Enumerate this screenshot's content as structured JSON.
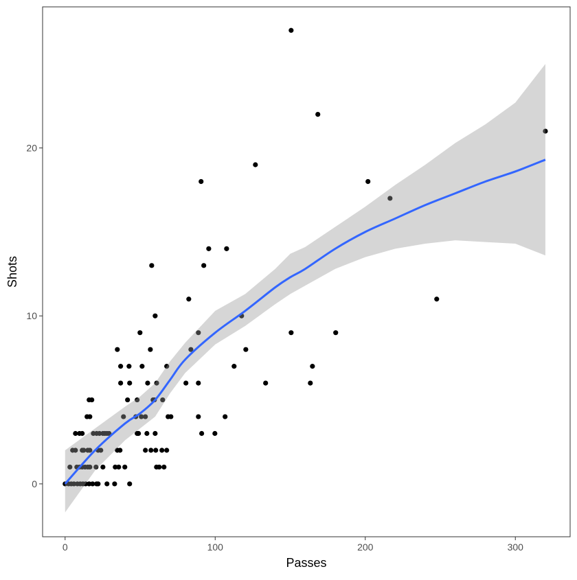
{
  "chart_data": {
    "type": "scatter",
    "title": "",
    "xlabel": "Passes",
    "ylabel": "Shots",
    "xlim": [
      -15,
      336.5
    ],
    "ylim": [
      -3.15,
      28.4
    ],
    "x_ticks": [
      0,
      100,
      200,
      300
    ],
    "y_ticks": [
      0,
      10,
      20
    ],
    "x_tick_labels": [
      "0",
      "100",
      "200",
      "300"
    ],
    "y_tick_labels": [
      "0",
      "10",
      "20"
    ],
    "grid": false,
    "colors": {
      "points": "#000000",
      "smooth_line": "#3366FF",
      "ribbon": "#999999",
      "axis": "#333333",
      "tick_text": "#4D4D4D"
    },
    "points": [
      [
        150.6,
        27
      ],
      [
        168.4,
        22
      ],
      [
        320,
        21
      ],
      [
        126.8,
        19
      ],
      [
        90.6,
        18
      ],
      [
        201.8,
        18
      ],
      [
        216.5,
        17
      ],
      [
        95.7,
        14
      ],
      [
        107.6,
        14
      ],
      [
        57.7,
        13
      ],
      [
        92.4,
        13
      ],
      [
        82.4,
        11
      ],
      [
        247.6,
        11
      ],
      [
        60,
        10
      ],
      [
        117.6,
        10
      ],
      [
        49.9,
        9
      ],
      [
        88.8,
        9
      ],
      [
        150.6,
        9
      ],
      [
        180.3,
        9
      ],
      [
        34.8,
        8
      ],
      [
        56.8,
        8
      ],
      [
        83.8,
        8
      ],
      [
        120.4,
        8
      ],
      [
        37,
        7
      ],
      [
        42.6,
        7
      ],
      [
        51.3,
        7
      ],
      [
        67.7,
        7
      ],
      [
        112.6,
        7
      ],
      [
        164.8,
        7
      ],
      [
        37,
        6
      ],
      [
        43,
        6
      ],
      [
        55,
        6
      ],
      [
        61,
        6
      ],
      [
        80.5,
        6
      ],
      [
        88.8,
        6
      ],
      [
        133.6,
        6
      ],
      [
        163.4,
        6
      ],
      [
        16,
        5
      ],
      [
        17.8,
        5
      ],
      [
        41.6,
        5
      ],
      [
        48,
        5
      ],
      [
        58.6,
        5
      ],
      [
        59.5,
        5
      ],
      [
        65,
        5
      ],
      [
        14.6,
        4
      ],
      [
        16.5,
        4
      ],
      [
        38.9,
        4
      ],
      [
        47.1,
        4
      ],
      [
        50.8,
        4
      ],
      [
        53.5,
        4
      ],
      [
        68.6,
        4
      ],
      [
        70.5,
        4
      ],
      [
        88.8,
        4
      ],
      [
        106.6,
        4
      ],
      [
        6.9,
        3
      ],
      [
        9.6,
        3
      ],
      [
        11.4,
        3
      ],
      [
        18.8,
        3
      ],
      [
        21,
        3
      ],
      [
        22.9,
        3
      ],
      [
        25.2,
        3
      ],
      [
        26.5,
        3
      ],
      [
        27.9,
        3
      ],
      [
        29.3,
        3
      ],
      [
        48,
        3
      ],
      [
        48.9,
        3
      ],
      [
        54.5,
        3
      ],
      [
        60,
        3
      ],
      [
        91,
        3
      ],
      [
        99.8,
        3
      ],
      [
        5,
        2
      ],
      [
        6.9,
        2
      ],
      [
        11.4,
        2
      ],
      [
        12.4,
        2
      ],
      [
        15.1,
        2
      ],
      [
        16.5,
        2
      ],
      [
        22,
        2
      ],
      [
        23.8,
        2
      ],
      [
        34.8,
        2
      ],
      [
        36.6,
        2
      ],
      [
        53.5,
        2
      ],
      [
        57.2,
        2
      ],
      [
        60.4,
        2
      ],
      [
        64.5,
        2
      ],
      [
        67.7,
        2
      ],
      [
        3.2,
        1
      ],
      [
        7.8,
        1
      ],
      [
        9.6,
        1
      ],
      [
        11.4,
        1
      ],
      [
        13.3,
        1
      ],
      [
        15.1,
        1
      ],
      [
        16.5,
        1
      ],
      [
        20.6,
        1
      ],
      [
        25.2,
        1
      ],
      [
        33.4,
        1
      ],
      [
        35.7,
        1
      ],
      [
        39.8,
        1
      ],
      [
        60.9,
        1
      ],
      [
        62.7,
        1
      ],
      [
        65.9,
        1
      ],
      [
        0,
        0
      ],
      [
        2.3,
        0
      ],
      [
        4.1,
        0
      ],
      [
        5.9,
        0
      ],
      [
        8.2,
        0
      ],
      [
        10.1,
        0
      ],
      [
        11.9,
        0
      ],
      [
        13.7,
        0
      ],
      [
        16,
        0
      ],
      [
        18.3,
        0
      ],
      [
        21,
        0
      ],
      [
        22,
        0
      ],
      [
        27.9,
        0
      ],
      [
        33,
        0
      ],
      [
        43,
        0
      ]
    ],
    "smooth": {
      "method": "loess",
      "x": [
        0,
        20,
        40,
        50,
        60,
        70,
        80,
        100,
        120,
        140,
        150,
        160,
        180,
        200,
        220,
        240,
        260,
        280,
        300,
        320
      ],
      "y": [
        0,
        2,
        3.6,
        4.2,
        5,
        6.2,
        7.4,
        9,
        10.3,
        11.7,
        12.3,
        12.8,
        14,
        15,
        15.8,
        16.6,
        17.3,
        18,
        18.6,
        19.3
      ],
      "lower": [
        -1.7,
        0.8,
        2.6,
        3.3,
        4,
        5.4,
        6.6,
        8.3,
        9.4,
        10.7,
        11.3,
        11.8,
        12.8,
        13.5,
        14,
        14.3,
        14.5,
        14.4,
        14.3,
        13.6
      ],
      "upper": [
        2,
        3.3,
        4.6,
        5.2,
        6,
        7.3,
        8.4,
        10.3,
        11.3,
        12.8,
        13.7,
        14.1,
        15.3,
        16.5,
        17.8,
        19,
        20.3,
        21.4,
        22.7,
        25
      ]
    }
  }
}
